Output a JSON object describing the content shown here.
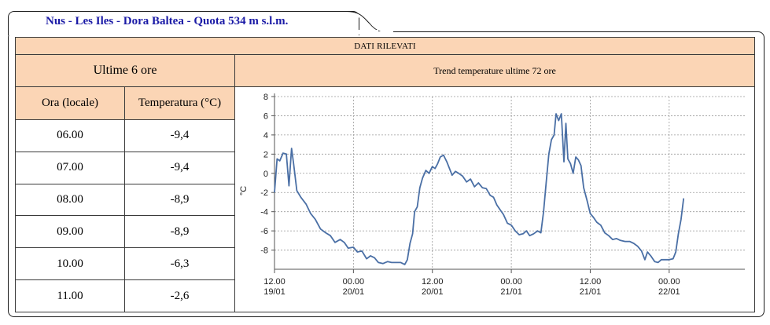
{
  "header": {
    "station_title": "Nus - Les Iles - Dora Baltea - Quota 534 m s.l.m."
  },
  "panel": {
    "title": "DATI RILEVATI",
    "left_title": "Ultime 6 ore",
    "chart_title": "Trend temperature ultime 72 ore"
  },
  "table": {
    "columns": [
      "Ora (locale)",
      "Temperatura (°C)"
    ],
    "rows": [
      {
        "time": "06.00",
        "temp": "-9,4"
      },
      {
        "time": "07.00",
        "temp": "-9,4"
      },
      {
        "time": "08.00",
        "temp": "-8,9"
      },
      {
        "time": "09.00",
        "temp": "-8,9"
      },
      {
        "time": "10.00",
        "temp": "-6,3"
      },
      {
        "time": "11.00",
        "temp": "-2,6"
      }
    ]
  },
  "colors": {
    "panel_bg": "#fbd5b5",
    "title_text": "#1a1aa6",
    "line": "#4a6fa5"
  },
  "chart_data": {
    "type": "line",
    "title": "",
    "xlabel": "",
    "ylabel": "°C",
    "ylim": [
      -10,
      8
    ],
    "yticks": [
      8,
      6,
      4,
      2,
      0,
      -2,
      -4,
      -6,
      -8
    ],
    "grid": true,
    "xticks": [
      {
        "hour": 0,
        "l1": "12.00",
        "l2": "19/01"
      },
      {
        "hour": 12,
        "l1": "00.00",
        "l2": "20/01"
      },
      {
        "hour": 24,
        "l1": "12.00",
        "l2": "20/01"
      },
      {
        "hour": 36,
        "l1": "00.00",
        "l2": "21/01"
      },
      {
        "hour": 48,
        "l1": "12.00",
        "l2": "21/01"
      },
      {
        "hour": 60,
        "l1": "00.00",
        "l2": "22/01"
      }
    ],
    "xlim": [
      0,
      71.5
    ],
    "series": [
      {
        "name": "",
        "points": [
          [
            0,
            -2
          ],
          [
            0.4,
            1.5
          ],
          [
            0.8,
            1.3
          ],
          [
            1.3,
            2.1
          ],
          [
            1.8,
            2.0
          ],
          [
            2.2,
            -1.3
          ],
          [
            2.6,
            2.6
          ],
          [
            2.9,
            1.0
          ],
          [
            3.4,
            -1.8
          ],
          [
            4.0,
            -2.5
          ],
          [
            4.8,
            -3.2
          ],
          [
            5.5,
            -4.2
          ],
          [
            6.2,
            -4.8
          ],
          [
            7.0,
            -5.8
          ],
          [
            7.8,
            -6.2
          ],
          [
            8.5,
            -6.5
          ],
          [
            9.2,
            -7.2
          ],
          [
            10.0,
            -6.9
          ],
          [
            10.6,
            -7.2
          ],
          [
            11.2,
            -7.8
          ],
          [
            12.0,
            -7.7
          ],
          [
            12.6,
            -8.2
          ],
          [
            13.3,
            -8.1
          ],
          [
            14.0,
            -8.9
          ],
          [
            14.6,
            -8.6
          ],
          [
            15.2,
            -8.8
          ],
          [
            15.8,
            -9.3
          ],
          [
            16.5,
            -9.4
          ],
          [
            17.2,
            -9.2
          ],
          [
            17.8,
            -9.3
          ],
          [
            18.5,
            -9.3
          ],
          [
            19.2,
            -9.3
          ],
          [
            19.8,
            -9.5
          ],
          [
            20.2,
            -9.0
          ],
          [
            20.6,
            -7.3
          ],
          [
            21.0,
            -6.3
          ],
          [
            21.3,
            -4.0
          ],
          [
            21.7,
            -3.5
          ],
          [
            22.1,
            -1.5
          ],
          [
            22.5,
            -0.5
          ],
          [
            23.0,
            0.3
          ],
          [
            23.5,
            0.0
          ],
          [
            24.0,
            0.7
          ],
          [
            24.4,
            0.5
          ],
          [
            24.8,
            1.0
          ],
          [
            25.2,
            1.7
          ],
          [
            25.7,
            1.9
          ],
          [
            26.2,
            1.2
          ],
          [
            26.6,
            0.5
          ],
          [
            27.0,
            -0.2
          ],
          [
            27.5,
            0.2
          ],
          [
            28.0,
            0.0
          ],
          [
            28.6,
            -0.3
          ],
          [
            29.2,
            -0.9
          ],
          [
            29.8,
            -0.6
          ],
          [
            30.4,
            -1.4
          ],
          [
            31.0,
            -1.0
          ],
          [
            31.6,
            -1.5
          ],
          [
            32.2,
            -1.6
          ],
          [
            32.8,
            -2.3
          ],
          [
            33.3,
            -2.5
          ],
          [
            33.8,
            -3.3
          ],
          [
            34.3,
            -3.8
          ],
          [
            34.8,
            -4.3
          ],
          [
            35.4,
            -5.2
          ],
          [
            36.0,
            -5.4
          ],
          [
            36.6,
            -6.0
          ],
          [
            37.2,
            -6.4
          ],
          [
            37.8,
            -6.3
          ],
          [
            38.3,
            -6.0
          ],
          [
            38.8,
            -6.5
          ],
          [
            39.4,
            -6.3
          ],
          [
            40.0,
            -6.0
          ],
          [
            40.5,
            -6.2
          ],
          [
            40.9,
            -4.0
          ],
          [
            41.3,
            -1.0
          ],
          [
            41.7,
            2.0
          ],
          [
            42.1,
            3.5
          ],
          [
            42.5,
            4.0
          ],
          [
            42.8,
            6.2
          ],
          [
            43.2,
            5.5
          ],
          [
            43.6,
            6.2
          ],
          [
            44.0,
            1.2
          ],
          [
            44.3,
            5.2
          ],
          [
            44.6,
            1.5
          ],
          [
            45.0,
            1.0
          ],
          [
            45.4,
            0.0
          ],
          [
            45.8,
            1.7
          ],
          [
            46.2,
            1.4
          ],
          [
            46.6,
            0.8
          ],
          [
            47.0,
            -1.5
          ],
          [
            47.5,
            -2.8
          ],
          [
            48.0,
            -4.2
          ],
          [
            48.5,
            -4.6
          ],
          [
            49.0,
            -5.1
          ],
          [
            49.6,
            -5.4
          ],
          [
            50.2,
            -6.2
          ],
          [
            50.8,
            -6.5
          ],
          [
            51.4,
            -6.9
          ],
          [
            52.0,
            -6.8
          ],
          [
            52.6,
            -7.0
          ],
          [
            53.3,
            -7.1
          ],
          [
            54.0,
            -7.1
          ],
          [
            54.6,
            -7.3
          ],
          [
            55.2,
            -7.6
          ],
          [
            55.8,
            -8.1
          ],
          [
            56.3,
            -9.0
          ],
          [
            56.7,
            -8.2
          ],
          [
            57.2,
            -8.6
          ],
          [
            57.8,
            -9.2
          ],
          [
            58.3,
            -9.3
          ],
          [
            58.8,
            -9.0
          ],
          [
            59.4,
            -9.0
          ],
          [
            60.0,
            -9.0
          ],
          [
            60.6,
            -8.9
          ],
          [
            61.0,
            -8.2
          ],
          [
            61.4,
            -6.3
          ],
          [
            61.8,
            -4.8
          ],
          [
            62.2,
            -2.6
          ]
        ]
      }
    ]
  }
}
